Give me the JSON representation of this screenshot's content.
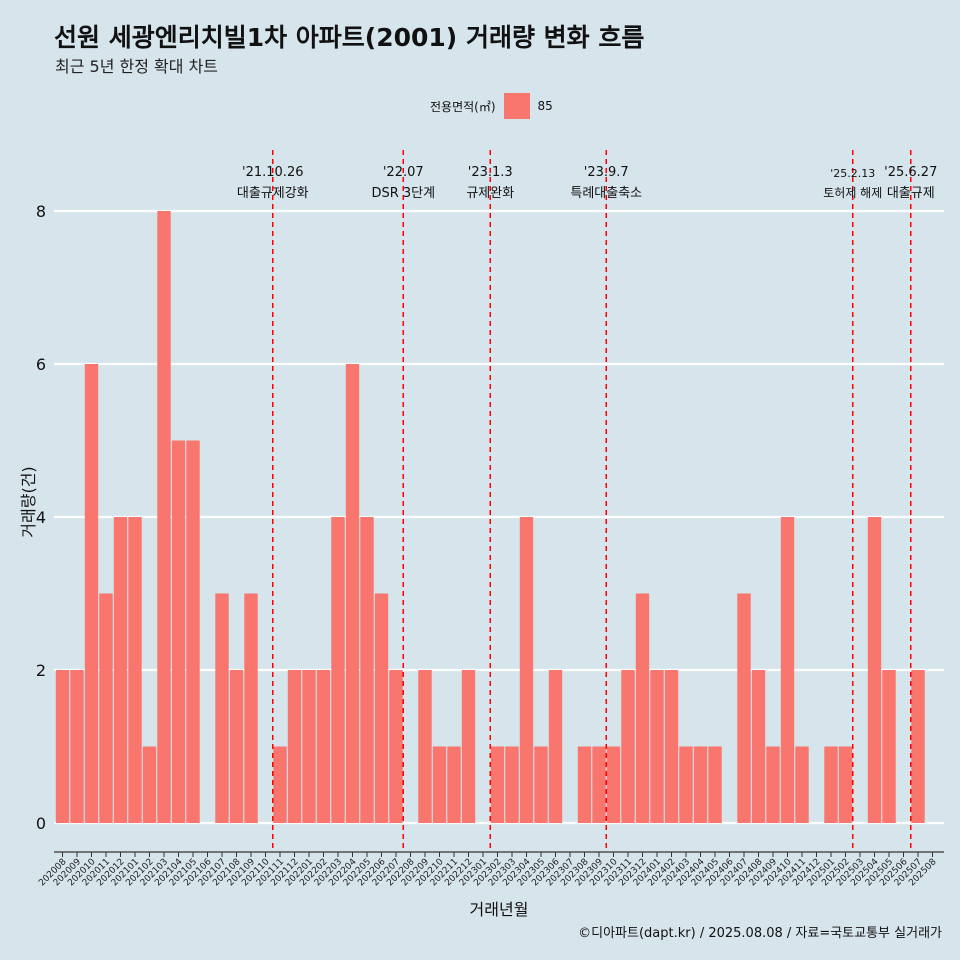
{
  "header": {
    "title": "선원 세광엔리치빌1차 아파트(2001) 거래량 변화 흐름",
    "subtitle": "최근 5년 한정 확대 차트"
  },
  "legend": {
    "title": "전용면적(㎡)",
    "label": "85",
    "color": "#f8766d"
  },
  "caption": "©디아파트(dapt.kr) / 2025.08.08 / 자료=국토교통부 실거래가",
  "colors": {
    "background": "#d6e4ec",
    "bar": "#f8766d",
    "event_line": "#ff0000",
    "grid": "#ffffff"
  },
  "chart_data": {
    "type": "bar",
    "xlabel": "거래년월",
    "ylabel": "거래량(건)",
    "ylim": [
      0,
      8
    ],
    "yticks": [
      0,
      2,
      4,
      6,
      8
    ],
    "grid": true,
    "legend_position": "top",
    "categories": [
      "202008",
      "202009",
      "202010",
      "202011",
      "202012",
      "202101",
      "202102",
      "202103",
      "202104",
      "202105",
      "202106",
      "202107",
      "202108",
      "202109",
      "202110",
      "202111",
      "202112",
      "202201",
      "202202",
      "202203",
      "202204",
      "202205",
      "202206",
      "202207",
      "202208",
      "202209",
      "202210",
      "202211",
      "202212",
      "202301",
      "202302",
      "202303",
      "202304",
      "202305",
      "202306",
      "202307",
      "202308",
      "202309",
      "202310",
      "202311",
      "202312",
      "202401",
      "202402",
      "202403",
      "202404",
      "202405",
      "202406",
      "202407",
      "202408",
      "202409",
      "202410",
      "202411",
      "202412",
      "202501",
      "202502",
      "202503",
      "202504",
      "202505",
      "202506",
      "202507",
      "202508"
    ],
    "series": [
      {
        "name": "85",
        "values": [
          2,
          2,
          6,
          3,
          4,
          4,
          1,
          8,
          5,
          5,
          0,
          3,
          2,
          3,
          0,
          1,
          2,
          2,
          2,
          4,
          6,
          4,
          3,
          2,
          0,
          2,
          1,
          1,
          2,
          0,
          1,
          1,
          4,
          1,
          2,
          0,
          1,
          1,
          1,
          2,
          3,
          2,
          2,
          1,
          1,
          1,
          0,
          3,
          2,
          1,
          4,
          1,
          0,
          1,
          1,
          0,
          4,
          2,
          0,
          2,
          0
        ]
      }
    ],
    "events": [
      {
        "date": "'21.10.26",
        "label": "대출규제강화",
        "position": 14.5
      },
      {
        "date": "'22.07",
        "label": "DSR 3단계",
        "position": 23.5
      },
      {
        "date": "'23.1.3",
        "label": "규제완화",
        "position": 29.5
      },
      {
        "date": "'23.9.7",
        "label": "특례대출축소",
        "position": 37.5
      },
      {
        "date": "'25.2.13",
        "label": "토허제 해제",
        "position": 54.5
      },
      {
        "date": "'25.6.27",
        "label": "대출규제",
        "position": 58.5
      }
    ]
  }
}
